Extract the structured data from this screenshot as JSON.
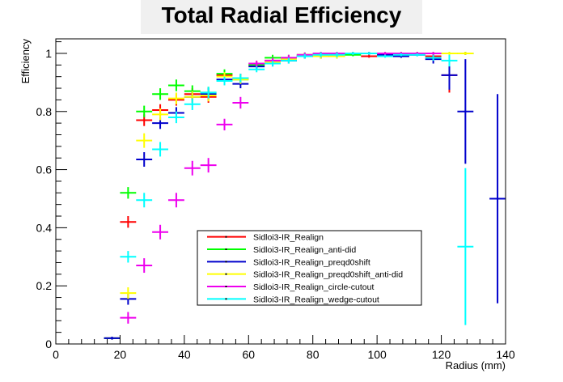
{
  "chart_data": {
    "type": "scatter",
    "title": "Total Radial Efficiency",
    "xlabel": "Radius (mm)",
    "ylabel": "Efficiency",
    "xlim": [
      0,
      140
    ],
    "ylim": [
      0,
      1.05
    ],
    "x_ticks": [
      0,
      20,
      40,
      60,
      80,
      100,
      120,
      140
    ],
    "y_ticks": [
      0,
      0.2,
      0.4,
      0.6,
      0.8,
      1
    ],
    "x_tick_labels": [
      "0",
      "20",
      "40",
      "60",
      "80",
      "100",
      "120",
      "140"
    ],
    "y_tick_labels": [
      "0",
      "0.2",
      "0.4",
      "0.6",
      "0.8",
      "1"
    ],
    "grid": false,
    "legend_position": "bottom-center",
    "series": [
      {
        "name": "Sidloi3-IR_Realign",
        "color": "#ff0000",
        "points": [
          [
            17.5,
            0.02,
            0.005
          ],
          [
            22.5,
            0.42,
            0.02
          ],
          [
            27.5,
            0.77,
            0.02
          ],
          [
            32.5,
            0.805,
            0.02
          ],
          [
            37.5,
            0.84,
            0.02
          ],
          [
            42.5,
            0.86,
            0.02
          ],
          [
            47.5,
            0.85,
            0.02
          ],
          [
            52.5,
            0.925,
            0.015
          ],
          [
            57.5,
            0.915,
            0.015
          ],
          [
            62.5,
            0.96,
            0.01
          ],
          [
            67.5,
            0.975,
            0.01
          ],
          [
            72.5,
            0.975,
            0.01
          ],
          [
            77.5,
            0.99,
            0.008
          ],
          [
            82.5,
            0.99,
            0.008
          ],
          [
            87.5,
            0.99,
            0.008
          ],
          [
            92.5,
            1.0,
            0.005
          ],
          [
            97.5,
            0.99,
            0.005
          ],
          [
            102.5,
            0.995,
            0.005
          ],
          [
            107.5,
            0.99,
            0.005
          ],
          [
            112.5,
            1.0,
            0.005
          ],
          [
            117.5,
            0.99,
            0.01
          ],
          [
            122.5,
            0.925,
            0.06
          ],
          [
            127.5,
            1.0,
            0.005
          ]
        ]
      },
      {
        "name": "Sidloi3-IR_Realign_anti-did",
        "color": "#00ff00",
        "points": [
          [
            17.5,
            0.02,
            0.005
          ],
          [
            22.5,
            0.52,
            0.02
          ],
          [
            27.5,
            0.8,
            0.02
          ],
          [
            32.5,
            0.86,
            0.02
          ],
          [
            37.5,
            0.89,
            0.02
          ],
          [
            42.5,
            0.87,
            0.02
          ],
          [
            47.5,
            0.865,
            0.02
          ],
          [
            52.5,
            0.93,
            0.015
          ],
          [
            57.5,
            0.91,
            0.015
          ],
          [
            62.5,
            0.96,
            0.01
          ],
          [
            67.5,
            0.985,
            0.01
          ],
          [
            72.5,
            0.985,
            0.01
          ],
          [
            77.5,
            0.995,
            0.008
          ],
          [
            82.5,
            1.0,
            0.005
          ],
          [
            87.5,
            1.0,
            0.005
          ],
          [
            92.5,
            0.995,
            0.005
          ],
          [
            97.5,
            1.0,
            0.005
          ],
          [
            102.5,
            0.995,
            0.005
          ],
          [
            107.5,
            1.0,
            0.005
          ],
          [
            112.5,
            1.0,
            0.005
          ],
          [
            117.5,
            1.0,
            0.005
          ],
          [
            122.5,
            1.0,
            0.005
          ],
          [
            127.5,
            1.0,
            0.005
          ]
        ]
      },
      {
        "name": "Sidloi3-IR_Realign_preqd0shift",
        "color": "#0000cc",
        "points": [
          [
            17.5,
            0.02,
            0.005
          ],
          [
            22.5,
            0.155,
            0.02
          ],
          [
            27.5,
            0.635,
            0.025
          ],
          [
            32.5,
            0.76,
            0.02
          ],
          [
            37.5,
            0.795,
            0.02
          ],
          [
            42.5,
            0.85,
            0.02
          ],
          [
            47.5,
            0.86,
            0.02
          ],
          [
            52.5,
            0.91,
            0.015
          ],
          [
            57.5,
            0.895,
            0.015
          ],
          [
            62.5,
            0.955,
            0.01
          ],
          [
            67.5,
            0.965,
            0.01
          ],
          [
            72.5,
            0.975,
            0.01
          ],
          [
            77.5,
            0.99,
            0.008
          ],
          [
            82.5,
            0.99,
            0.008
          ],
          [
            87.5,
            0.99,
            0.008
          ],
          [
            92.5,
            1.0,
            0.005
          ],
          [
            97.5,
            1.0,
            0.005
          ],
          [
            102.5,
            0.995,
            0.005
          ],
          [
            107.5,
            0.99,
            0.005
          ],
          [
            112.5,
            0.995,
            0.005
          ],
          [
            117.5,
            0.98,
            0.015
          ],
          [
            122.5,
            0.925,
            0.05
          ],
          [
            127.5,
            0.8,
            0.18
          ],
          [
            137.5,
            0.5,
            0.36
          ]
        ]
      },
      {
        "name": "Sidloi3-IR_Realign_preqd0shift_anti-did",
        "color": "#ffff00",
        "points": [
          [
            22.5,
            0.175,
            0.02
          ],
          [
            27.5,
            0.7,
            0.025
          ],
          [
            32.5,
            0.79,
            0.02
          ],
          [
            37.5,
            0.845,
            0.02
          ],
          [
            42.5,
            0.85,
            0.02
          ],
          [
            47.5,
            0.855,
            0.02
          ],
          [
            52.5,
            0.92,
            0.015
          ],
          [
            57.5,
            0.91,
            0.015
          ],
          [
            62.5,
            0.965,
            0.01
          ],
          [
            67.5,
            0.97,
            0.01
          ],
          [
            72.5,
            0.98,
            0.01
          ],
          [
            77.5,
            0.995,
            0.008
          ],
          [
            82.5,
            0.99,
            0.008
          ],
          [
            87.5,
            0.99,
            0.008
          ],
          [
            92.5,
            1.0,
            0.005
          ],
          [
            97.5,
            1.0,
            0.005
          ],
          [
            102.5,
            1.0,
            0.005
          ],
          [
            107.5,
            1.0,
            0.005
          ],
          [
            112.5,
            1.0,
            0.005
          ],
          [
            117.5,
            1.0,
            0.005
          ],
          [
            122.5,
            1.0,
            0.005
          ],
          [
            127.5,
            1.0,
            0.005
          ]
        ]
      },
      {
        "name": "Sidloi3-IR_Realign_circle-cutout",
        "color": "#ee00ee",
        "points": [
          [
            22.5,
            0.09,
            0.02
          ],
          [
            27.5,
            0.27,
            0.025
          ],
          [
            32.5,
            0.385,
            0.025
          ],
          [
            37.5,
            0.495,
            0.025
          ],
          [
            42.5,
            0.605,
            0.025
          ],
          [
            47.5,
            0.615,
            0.025
          ],
          [
            52.5,
            0.755,
            0.02
          ],
          [
            57.5,
            0.83,
            0.02
          ],
          [
            62.5,
            0.965,
            0.01
          ],
          [
            67.5,
            0.975,
            0.01
          ],
          [
            72.5,
            0.985,
            0.01
          ],
          [
            77.5,
            0.995,
            0.008
          ],
          [
            82.5,
            1.0,
            0.005
          ],
          [
            87.5,
            1.0,
            0.005
          ],
          [
            92.5,
            1.0,
            0.005
          ],
          [
            97.5,
            1.0,
            0.005
          ],
          [
            102.5,
            1.0,
            0.005
          ],
          [
            107.5,
            1.0,
            0.005
          ],
          [
            112.5,
            1.0,
            0.005
          ],
          [
            117.5,
            1.0,
            0.005
          ]
        ]
      },
      {
        "name": "Sidloi3-IR_Realign_wedge-cutout",
        "color": "#00ffff",
        "points": [
          [
            22.5,
            0.3,
            0.02
          ],
          [
            27.5,
            0.495,
            0.025
          ],
          [
            32.5,
            0.67,
            0.025
          ],
          [
            37.5,
            0.78,
            0.02
          ],
          [
            42.5,
            0.825,
            0.02
          ],
          [
            47.5,
            0.865,
            0.02
          ],
          [
            52.5,
            0.905,
            0.015
          ],
          [
            57.5,
            0.915,
            0.015
          ],
          [
            62.5,
            0.945,
            0.01
          ],
          [
            67.5,
            0.965,
            0.01
          ],
          [
            72.5,
            0.975,
            0.01
          ],
          [
            77.5,
            0.99,
            0.008
          ],
          [
            82.5,
            0.995,
            0.008
          ],
          [
            87.5,
            0.995,
            0.008
          ],
          [
            92.5,
            1.0,
            0.005
          ],
          [
            97.5,
            1.0,
            0.005
          ],
          [
            102.5,
            0.99,
            0.005
          ],
          [
            107.5,
            0.995,
            0.005
          ],
          [
            112.5,
            0.995,
            0.005
          ],
          [
            117.5,
            0.985,
            0.01
          ],
          [
            122.5,
            0.975,
            0.02
          ],
          [
            127.5,
            0.335,
            0.27
          ]
        ]
      }
    ]
  }
}
